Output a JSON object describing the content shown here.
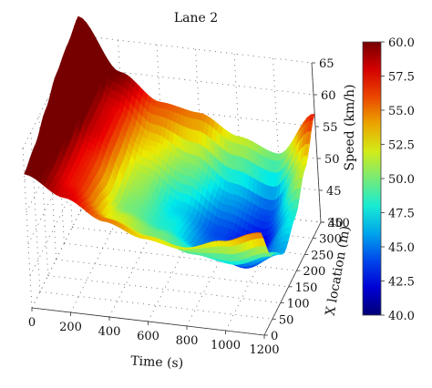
{
  "chart_data": {
    "type": "surface3d",
    "title": "Lane 2",
    "x_axis": {
      "label": "Time (s)",
      "ticks": [
        "0",
        "200",
        "400",
        "600",
        "800",
        "1000",
        "1200"
      ],
      "range": [
        0,
        1200
      ]
    },
    "y_axis": {
      "label": "X location (m)",
      "ticks": [
        "0",
        "50",
        "100",
        "150",
        "200",
        "250",
        "300",
        "350"
      ],
      "range": [
        0,
        350
      ]
    },
    "z_axis": {
      "label": "Speed (km/h)",
      "ticks": [
        "40",
        "45",
        "50",
        "55",
        "60",
        "65"
      ],
      "range": [
        40,
        65
      ]
    },
    "colorbar": {
      "ticks": [
        "40.0",
        "42.5",
        "45.0",
        "47.5",
        "50.0",
        "52.5",
        "55.0",
        "57.5",
        "60.0"
      ],
      "range": [
        40,
        60
      ],
      "colormap": "jet",
      "placement": "right"
    },
    "grid": true,
    "surface": {
      "time": [
        0,
        200,
        400,
        600,
        800,
        1000,
        1200
      ],
      "x_location": [
        0,
        70,
        140,
        210,
        280,
        350
      ],
      "speed": [
        [
          61,
          58,
          55,
          53,
          52,
          54,
          56
        ],
        [
          62,
          57,
          52,
          50,
          48,
          47,
          49
        ],
        [
          64,
          57,
          50,
          48,
          45,
          43,
          46
        ],
        [
          66,
          58,
          51,
          47,
          44,
          42,
          48
        ],
        [
          67,
          58,
          53,
          50,
          46,
          44,
          52
        ],
        [
          68,
          60,
          56,
          55,
          52,
          50,
          57
        ]
      ]
    }
  }
}
